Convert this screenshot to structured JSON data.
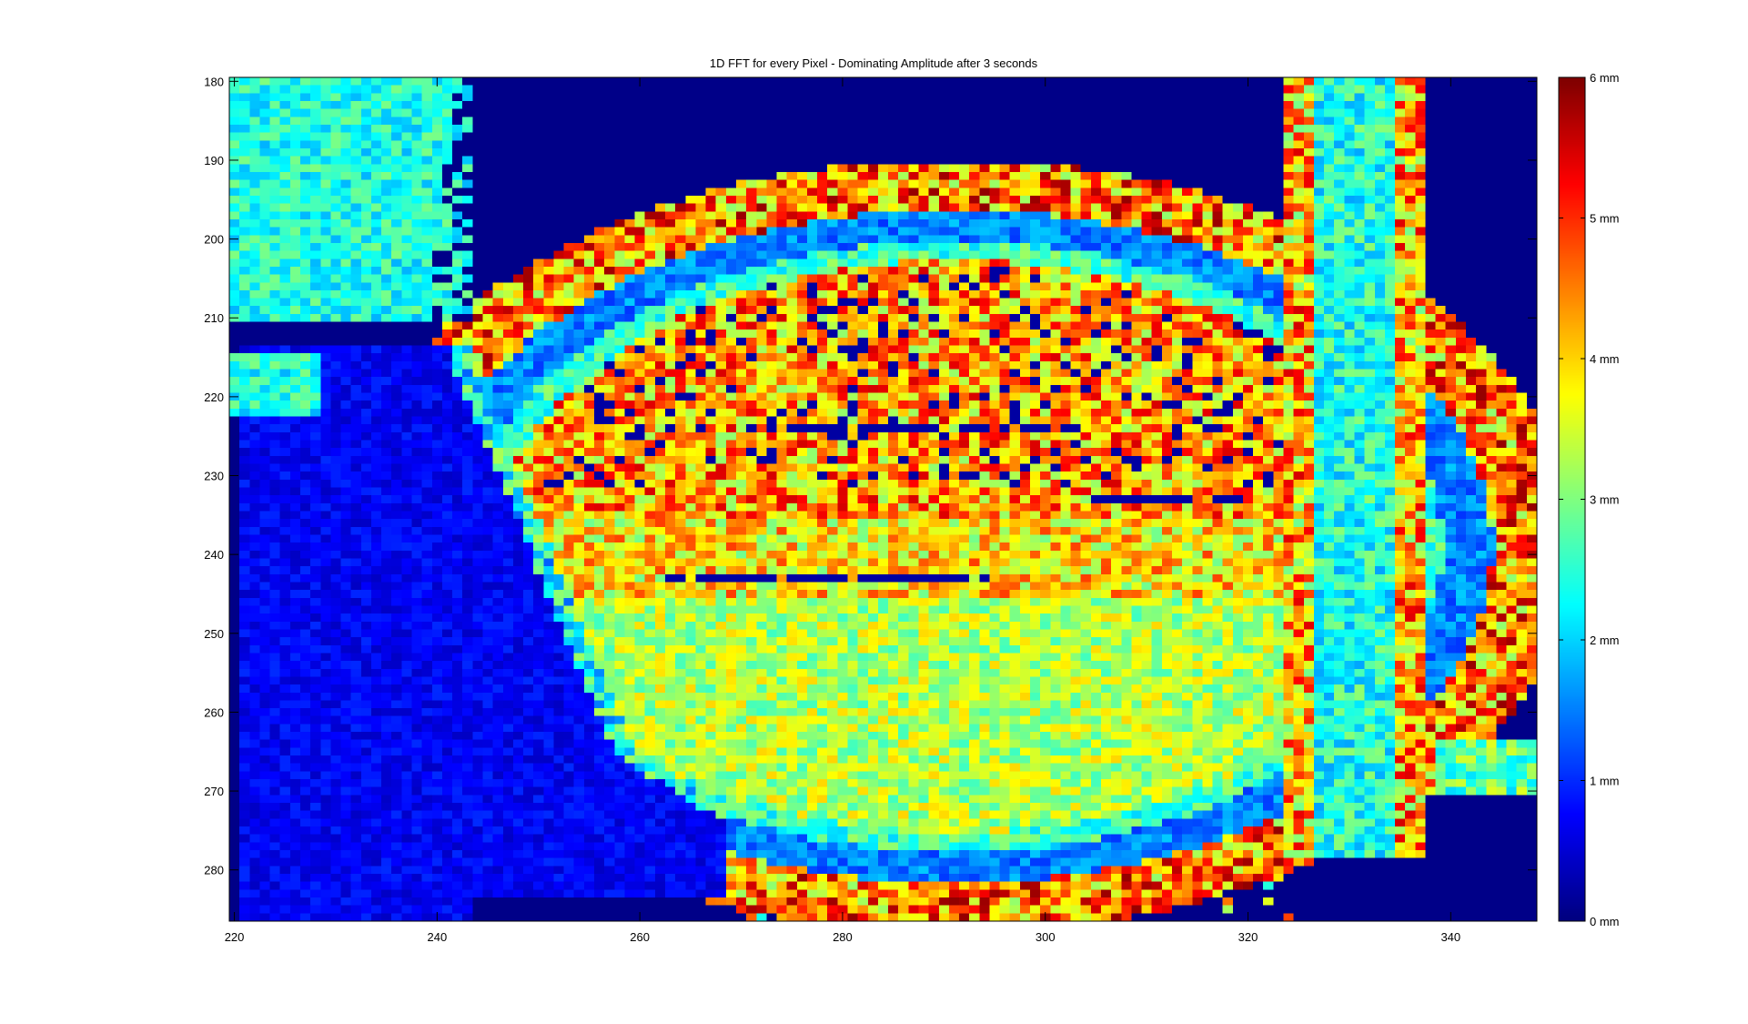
{
  "chart_data": {
    "type": "heatmap",
    "title": "1D FFT for every Pixel - Dominating Amplitude after 3 seconds",
    "xlabel": "",
    "ylabel": "",
    "xlim": [
      219.5,
      348.5
    ],
    "ylim": [
      179.5,
      286.5
    ],
    "y_direction": "reversed",
    "x_ticks": [
      220,
      240,
      260,
      280,
      300,
      320,
      340
    ],
    "y_ticks": [
      180,
      190,
      200,
      210,
      220,
      230,
      240,
      250,
      260,
      270,
      280
    ],
    "colorbar": {
      "colormap": "jet",
      "range": [
        0,
        6
      ],
      "ticks": [
        {
          "value": 0,
          "label": "0 mm"
        },
        {
          "value": 1,
          "label": "1 mm"
        },
        {
          "value": 2,
          "label": "2 mm"
        },
        {
          "value": 3,
          "label": "3 mm"
        },
        {
          "value": 4,
          "label": "4 mm"
        },
        {
          "value": 5,
          "label": "5 mm"
        },
        {
          "value": 6,
          "label": "6 mm"
        }
      ]
    },
    "x": [
      219.5,
      348.5
    ],
    "y": [
      179.5,
      286.5
    ],
    "z_description_regions": [
      {
        "x": [
          220,
          243
        ],
        "y": [
          180,
          210
        ],
        "value": 2.4
      },
      {
        "x": [
          220,
          228
        ],
        "y": [
          215,
          222
        ],
        "value": 2.4
      },
      {
        "x": [
          221,
          263
        ],
        "y": [
          214,
          286
        ],
        "value": 0.7
      },
      {
        "center": [
          291,
          239
        ],
        "radii": [
          61,
          49
        ],
        "value": 4.4,
        "band": "outer-ring"
      },
      {
        "center": [
          291,
          239
        ],
        "radii": [
          54,
          43
        ],
        "value": 1.6,
        "band": "inner-ring"
      },
      {
        "center": [
          291,
          239
        ],
        "radii": [
          48,
          36
        ],
        "value": 3.6,
        "band": "inner-disk"
      },
      {
        "x": [
          325,
          337
        ],
        "y": [
          180,
          275
        ],
        "value": 2.4
      },
      {
        "x": [
          324,
          336
        ],
        "y": [
          180,
          278
        ],
        "value": 4.2,
        "band": "strip-edges"
      }
    ]
  }
}
